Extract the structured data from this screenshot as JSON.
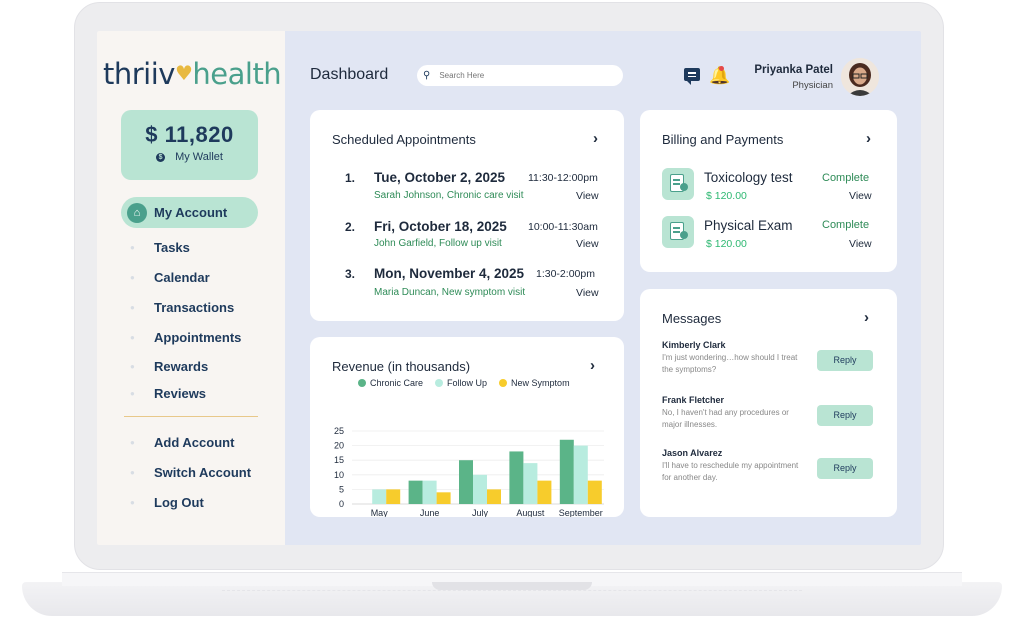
{
  "brand": {
    "part1": "thriiv",
    "heart": "♥",
    "part2": "health"
  },
  "wallet": {
    "amount": "$ 11,820",
    "label": "My Wallet",
    "icon": "coin-icon"
  },
  "sidebar": {
    "active": "My Account",
    "items": [
      "Tasks",
      "Calendar",
      "Transactions",
      "Appointments",
      "Rewards",
      "Reviews"
    ],
    "account_items": [
      "Add Account",
      "Switch Account",
      "Log Out"
    ]
  },
  "header": {
    "title": "Dashboard",
    "search_placeholder": "Search Here",
    "user_name": "Priyanka Patel",
    "user_role": "Physician"
  },
  "appointments": {
    "title": "Scheduled Appointments",
    "items": [
      {
        "num": "1.",
        "date": "Tue, October 2, 2025",
        "time": "11:30-12:00pm",
        "patient": "Sarah Johnson, Chronic care visit",
        "action": "View"
      },
      {
        "num": "2.",
        "date": "Fri, October 18, 2025",
        "time": "10:00-11:30am",
        "patient": "John Garfield, Follow up visit",
        "action": "View"
      },
      {
        "num": "3.",
        "date": "Mon, November 4, 2025",
        "time": "1:30-2:00pm",
        "patient": "Maria Duncan, New symptom visit",
        "action": "View"
      }
    ]
  },
  "billing": {
    "title": "Billing and Payments",
    "items": [
      {
        "title": "Toxicology test",
        "amount": "$ 120.00",
        "status": "Complete",
        "action": "View"
      },
      {
        "title": "Physical Exam",
        "amount": "$ 120.00",
        "status": "Complete",
        "action": "View"
      }
    ]
  },
  "messages": {
    "title": "Messages",
    "items": [
      {
        "from": "Kimberly Clark",
        "text": "I'm just wondering…how should I treat the symptoms?",
        "action": "Reply"
      },
      {
        "from": "Frank Fletcher",
        "text": "No, I haven't had any procedures or major illnesses.",
        "action": "Reply"
      },
      {
        "from": "Jason Alvarez",
        "text": "I'll have to reschedule my appointment for another day.",
        "action": "Reply"
      }
    ]
  },
  "colors": {
    "chronic": "#5bb488",
    "followup": "#b8ecdf",
    "newsymptom": "#f7cc2c"
  },
  "chart_data": {
    "type": "bar",
    "title": "Revenue (in thousands)",
    "categories": [
      "May",
      "June",
      "July",
      "August",
      "September"
    ],
    "series": [
      {
        "name": "Chronic Care",
        "values": [
          0,
          8,
          15,
          18,
          22
        ]
      },
      {
        "name": "Follow Up",
        "values": [
          5,
          8,
          10,
          14,
          20
        ]
      },
      {
        "name": "New Symptom",
        "values": [
          5,
          4,
          5,
          8,
          8
        ]
      }
    ],
    "yticks": [
      0,
      5,
      10,
      15,
      20,
      25
    ],
    "ylim": [
      0,
      25
    ],
    "legend": "top"
  }
}
